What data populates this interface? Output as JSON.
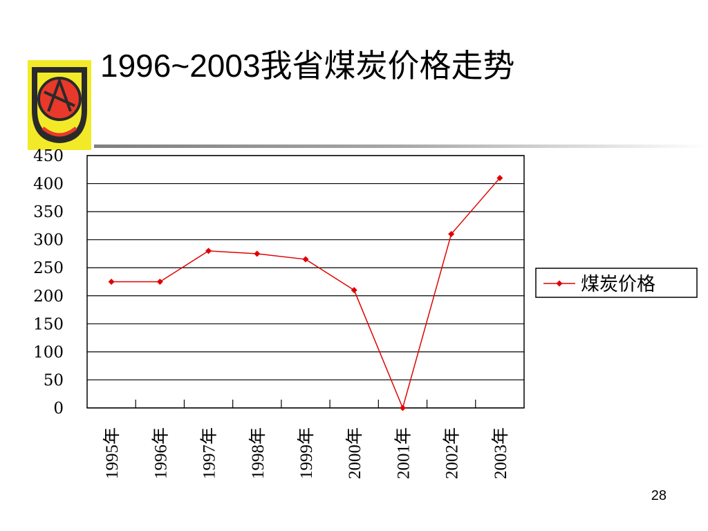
{
  "slide": {
    "title": "1996~2003我省煤炭价格走势",
    "page_number": "28",
    "logo_icon": "institution-emblem-icon"
  },
  "colors": {
    "series": "#e00000",
    "axis": "#000000",
    "logo_bg": "#f2ea28",
    "logo_red": "#e8392a",
    "logo_dark": "#2a2a2a"
  },
  "chart_data": {
    "type": "line",
    "title": "",
    "xlabel": "",
    "ylabel": "",
    "categories": [
      "1995年",
      "1996年",
      "1997年",
      "1998年",
      "1999年",
      "2000年",
      "2001年",
      "2002年",
      "2003年"
    ],
    "series": [
      {
        "name": "煤炭价格",
        "values": [
          225,
          225,
          280,
          275,
          265,
          210,
          0,
          310,
          410
        ],
        "color": "#e00000",
        "marker": "diamond"
      }
    ],
    "ylim": [
      0,
      450
    ],
    "yticks": [
      "0",
      "50",
      "100",
      "150",
      "200",
      "250",
      "300",
      "350",
      "400",
      "450"
    ],
    "grid": true,
    "legend": "right"
  }
}
